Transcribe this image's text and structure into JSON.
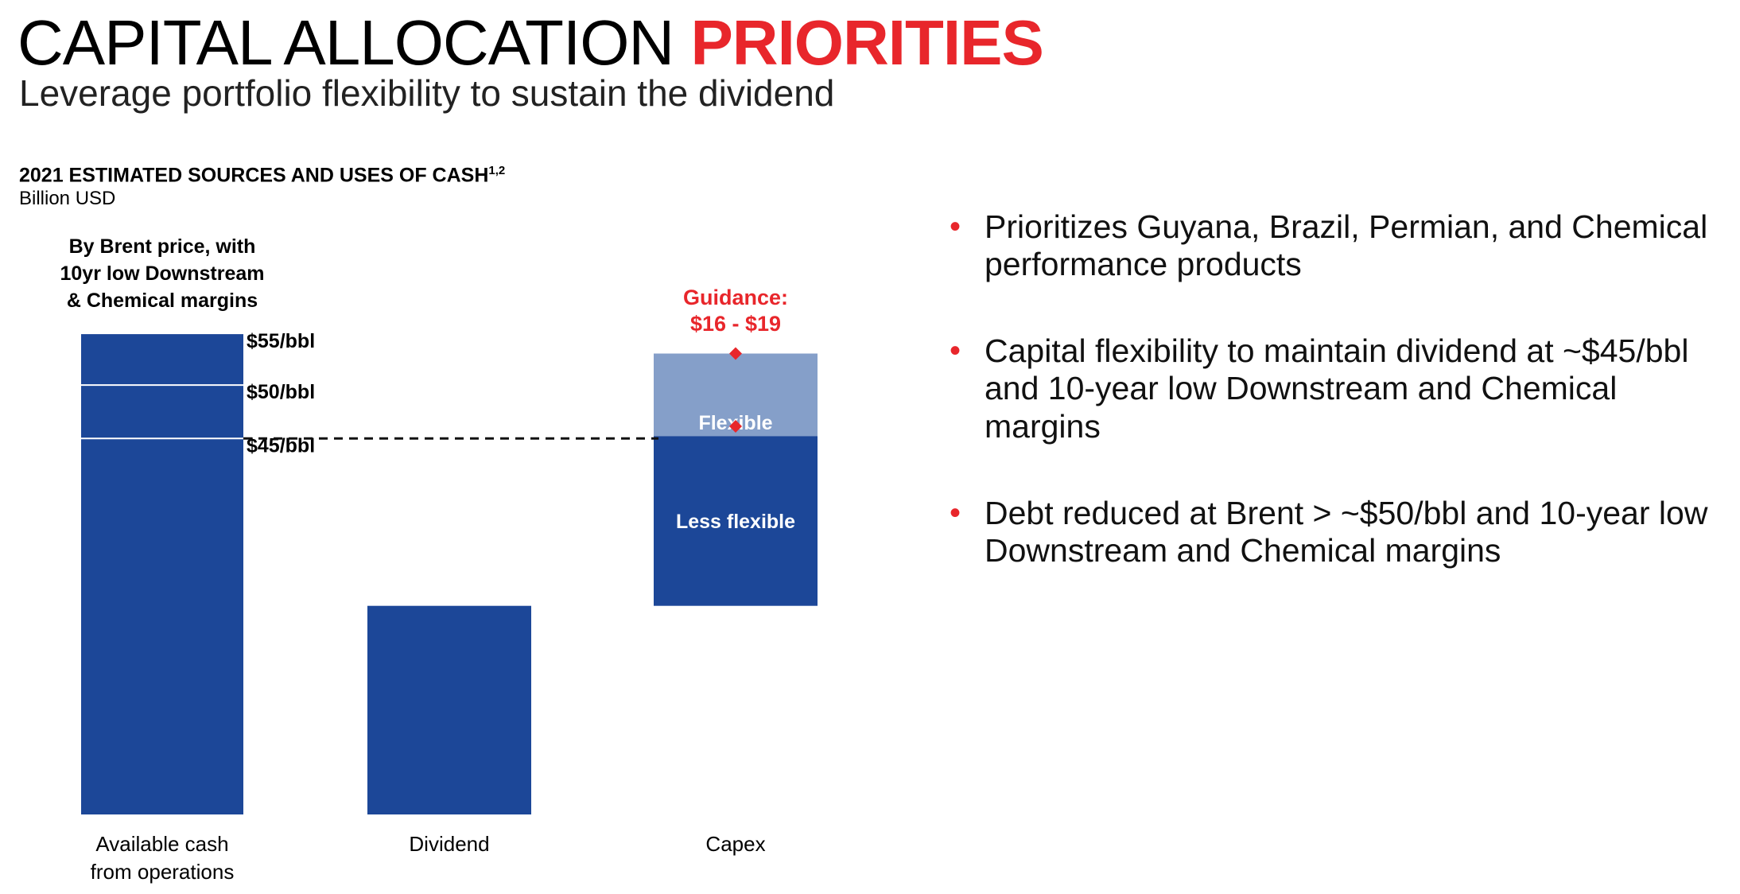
{
  "header": {
    "title_main": "CAPITAL ALLOCATION",
    "title_accent": "PRIORITIES",
    "subtitle": "Leverage portfolio flexibility to sustain the dividend"
  },
  "colors": {
    "accent": "#e8262b",
    "bar": "#1c4798",
    "flexible": "#859fc9"
  },
  "chart_data": {
    "type": "bar",
    "title": "2021 ESTIMATED SOURCES AND USES OF CASH",
    "title_superscript": "1,2",
    "units": "Billion USD",
    "categories": [
      "Available cash from operations",
      "Dividend",
      "Capex"
    ],
    "category_label_lines": [
      [
        "Available cash",
        "from operations"
      ],
      [
        "Dividend"
      ],
      [
        "Capex"
      ]
    ],
    "available_cash": {
      "note_lines": [
        "By Brent price, with",
        "10yr low Downstream",
        "& Chemical margins"
      ],
      "brent_levels": [
        {
          "label": "$55/bbl",
          "value": 19.8
        },
        {
          "label": "$50/bbl",
          "value": 17.7
        },
        {
          "label": "$45/bbl",
          "value": 15.5
        }
      ]
    },
    "dividend": {
      "value": 8.6
    },
    "capex": {
      "base": 8.6,
      "less_flexible_top": 15.6,
      "flexible_top": 19.0,
      "segments": [
        {
          "name": "Less flexible",
          "from": 8.6,
          "to": 15.6
        },
        {
          "name": "Flexible",
          "from": 15.6,
          "to": 19.0
        }
      ],
      "guidance_label_lines": [
        "Guidance:",
        "$16 - $19"
      ],
      "guidance_range": [
        16,
        19
      ],
      "guidance_markers": [
        16,
        19
      ]
    },
    "reference_line": {
      "label": "$45/bbl",
      "value": 15.5,
      "style": "dashed"
    },
    "ylim": [
      0,
      20
    ]
  },
  "bullets": [
    "Prioritizes Guyana, Brazil, Permian, and Chemical performance products",
    "Capital flexibility to maintain dividend at ~$45/bbl and 10-year low Downstream and Chemical margins",
    "Debt reduced at Brent > ~$50/bbl and 10-year low Downstream and Chemical margins"
  ],
  "bullet_marker": "•"
}
